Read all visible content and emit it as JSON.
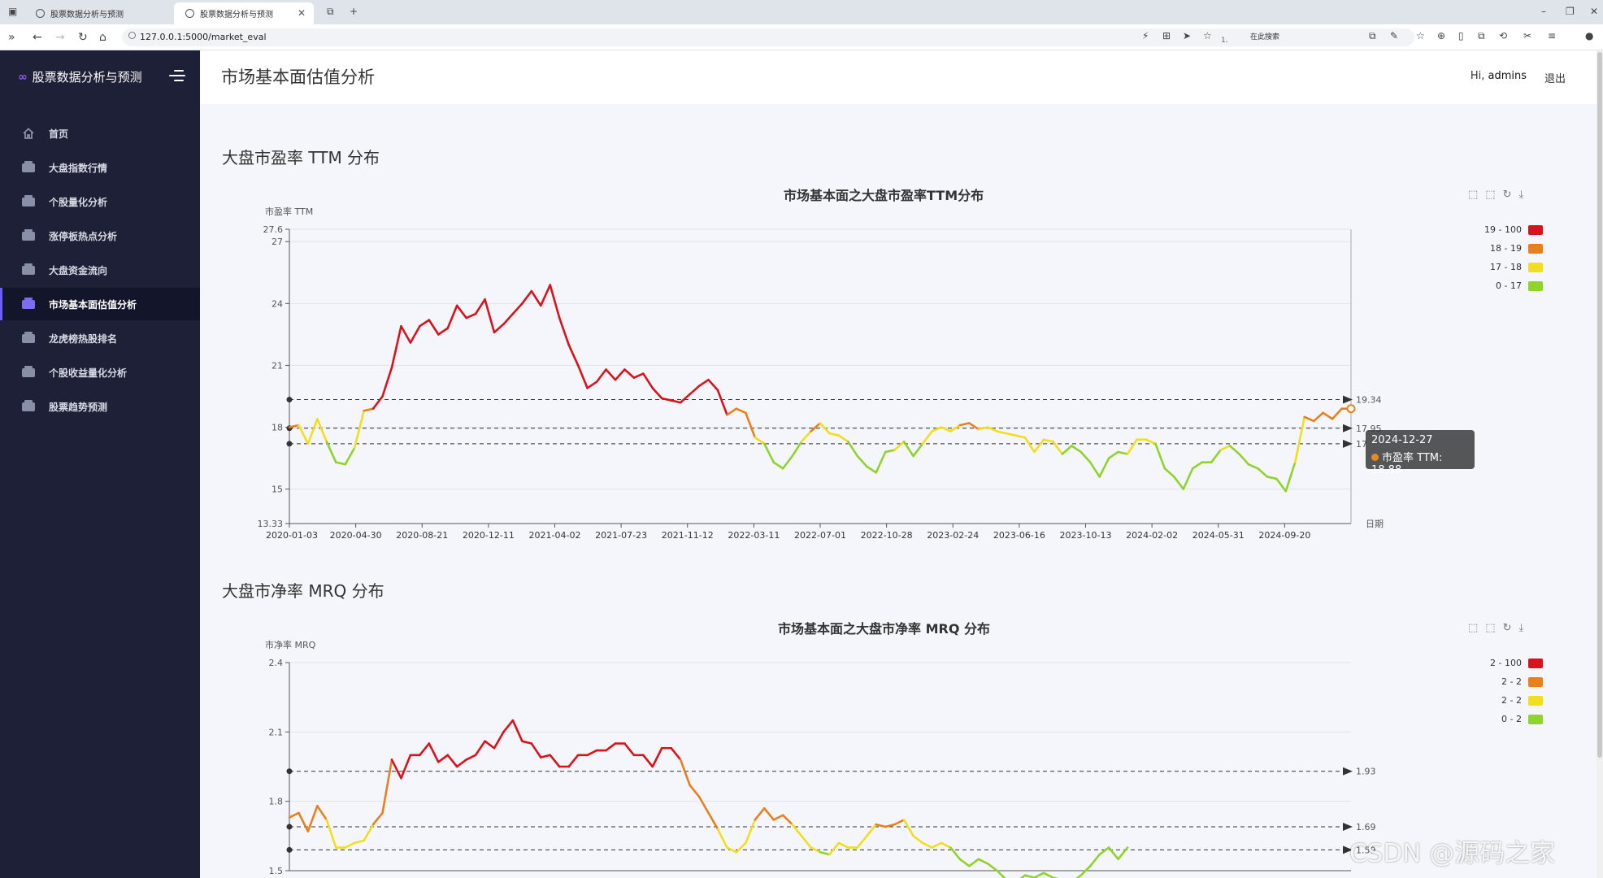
{
  "browser": {
    "tabs": [
      {
        "label": "股票数据分析与预测",
        "active": false
      },
      {
        "label": "股票数据分析与预测",
        "active": true
      }
    ],
    "url": "127.0.0.1:5000/market_eval",
    "zoom": "120%",
    "search_placeholder": "在此搜索"
  },
  "sidebar": {
    "brand": "股票数据分析与预测",
    "items": [
      {
        "label": "首页",
        "icon": "home-icon",
        "active": false
      },
      {
        "label": "大盘指数行情",
        "icon": "stack-icon",
        "active": false
      },
      {
        "label": "个股量化分析",
        "icon": "stack-icon",
        "active": false
      },
      {
        "label": "涨停板热点分析",
        "icon": "stack-icon",
        "active": false
      },
      {
        "label": "大盘资金流向",
        "icon": "stack-icon",
        "active": false
      },
      {
        "label": "市场基本面估值分析",
        "icon": "stack-icon",
        "active": true
      },
      {
        "label": "龙虎榜热股排名",
        "icon": "stack-icon",
        "active": false
      },
      {
        "label": "个股收益量化分析",
        "icon": "stack-icon",
        "active": false
      },
      {
        "label": "股票趋势预测",
        "icon": "stack-icon",
        "active": false
      }
    ]
  },
  "header": {
    "title": "市场基本面估值分析",
    "greeting": "Hi,",
    "username": "admins",
    "logout": "退出"
  },
  "sections": {
    "pe": "大盘市盈率 TTM 分布",
    "pb": "大盘市净率 MRQ 分布"
  },
  "tooltip": {
    "date": "2024-12-27",
    "label": "市盈率 TTM: 18.88"
  },
  "watermark": "CSDN @源码之家",
  "colors": {
    "red": "#d7141b",
    "orange": "#e8801e",
    "yellow": "#f2de1c",
    "green": "#8fd42b",
    "sidebar_bg": "#1d2037"
  },
  "chart_data": [
    {
      "type": "line",
      "title": "市场基本面之大盘市盈率TTM分布",
      "ylabel": "市盈率 TTM",
      "xlabel": "日期",
      "ylim": [
        13.33,
        27.6
      ],
      "yticks": [
        "13.33",
        "15",
        "18",
        "21",
        "24",
        "27",
        "27.6"
      ],
      "xticks": [
        "2020-01-03",
        "2020-04-30",
        "2020-08-21",
        "2020-12-11",
        "2021-04-02",
        "2021-07-23",
        "2021-11-12",
        "2022-03-11",
        "2022-07-01",
        "2022-10-28",
        "2023-02-24",
        "2023-06-16",
        "2023-10-13",
        "2024-02-02",
        "2024-05-31",
        "2024-09-20"
      ],
      "legend": [
        {
          "label": "19 - 100",
          "color": "#d7141b"
        },
        {
          "label": "18 - 19",
          "color": "#e8801e"
        },
        {
          "label": "17 - 18",
          "color": "#f2de1c"
        },
        {
          "label": "0 - 17",
          "color": "#8fd42b"
        }
      ],
      "thresholds": [
        19,
        18,
        17
      ],
      "marklines": [
        {
          "value": 19.34,
          "label": "19.34"
        },
        {
          "value": 17.95,
          "label": "17.95"
        },
        {
          "value": 17.2,
          "label": "17"
        }
      ],
      "series": [
        {
          "name": "市盈率 TTM",
          "values": [
            18.0,
            18.1,
            17.2,
            18.4,
            17.3,
            16.3,
            16.2,
            17.0,
            18.8,
            18.9,
            19.5,
            20.9,
            22.9,
            22.1,
            22.9,
            23.2,
            22.5,
            22.8,
            23.9,
            23.3,
            23.5,
            24.2,
            22.6,
            23.0,
            23.5,
            24.0,
            24.6,
            23.9,
            24.9,
            23.3,
            22.0,
            21.0,
            19.9,
            20.2,
            20.8,
            20.3,
            20.8,
            20.4,
            20.6,
            19.9,
            19.4,
            19.3,
            19.2,
            19.6,
            20.0,
            20.3,
            19.8,
            18.6,
            18.9,
            18.7,
            17.5,
            17.2,
            16.3,
            16.0,
            16.6,
            17.3,
            17.8,
            18.2,
            17.7,
            17.6,
            17.3,
            16.6,
            16.1,
            15.8,
            16.8,
            16.9,
            17.3,
            16.6,
            17.2,
            17.8,
            18.0,
            17.8,
            18.1,
            18.2,
            17.9,
            18.0,
            17.8,
            17.7,
            17.6,
            17.5,
            16.8,
            17.4,
            17.3,
            16.7,
            17.1,
            16.8,
            16.3,
            15.6,
            16.5,
            16.8,
            16.7,
            17.4,
            17.4,
            17.2,
            16.0,
            15.6,
            15.0,
            16.0,
            16.3,
            16.3,
            16.9,
            17.1,
            16.7,
            16.2,
            16.0,
            15.6,
            15.5,
            14.9,
            16.3,
            18.5,
            18.3,
            18.7,
            18.4,
            18.9,
            18.9
          ]
        }
      ]
    },
    {
      "type": "line",
      "title": "市场基本面之大盘市净率 MRQ 分布",
      "ylabel": "市净率 MRQ",
      "ylim": [
        1.5,
        2.4
      ],
      "yticks": [
        "1.5",
        "1.8",
        "2.1",
        "2.4"
      ],
      "legend": [
        {
          "label": "2 - 100",
          "color": "#d7141b"
        },
        {
          "label": "2 - 2",
          "color": "#e8801e"
        },
        {
          "label": "2 - 2",
          "color": "#f2de1c"
        },
        {
          "label": "0 - 2",
          "color": "#8fd42b"
        }
      ],
      "thresholds": [
        1.93,
        1.69,
        1.59
      ],
      "marklines": [
        {
          "value": 1.93,
          "label": "1.93"
        },
        {
          "value": 1.69,
          "label": "1.69"
        },
        {
          "value": 1.59,
          "label": "1.59"
        }
      ],
      "series": [
        {
          "name": "市净率 MRQ",
          "values": [
            1.73,
            1.75,
            1.67,
            1.78,
            1.72,
            1.6,
            1.6,
            1.62,
            1.63,
            1.7,
            1.75,
            1.98,
            1.9,
            2.0,
            2.0,
            2.05,
            1.97,
            2.0,
            1.95,
            1.98,
            2.0,
            2.06,
            2.03,
            2.1,
            2.15,
            2.06,
            2.05,
            1.99,
            2.0,
            1.95,
            1.95,
            2.0,
            2.0,
            2.02,
            2.02,
            2.05,
            2.05,
            2.0,
            2.0,
            1.95,
            2.03,
            2.03,
            1.98,
            1.87,
            1.82,
            1.75,
            1.68,
            1.6,
            1.58,
            1.62,
            1.72,
            1.77,
            1.72,
            1.74,
            1.7,
            1.65,
            1.6,
            1.58,
            1.57,
            1.62,
            1.6,
            1.6,
            1.65,
            1.7,
            1.69,
            1.7,
            1.72,
            1.65,
            1.62,
            1.6,
            1.62,
            1.6,
            1.55,
            1.52,
            1.55,
            1.53,
            1.5,
            1.46,
            1.45,
            1.48,
            1.47,
            1.49,
            1.47,
            1.46,
            1.45,
            1.48,
            1.52,
            1.57,
            1.6,
            1.55,
            1.6
          ]
        }
      ]
    }
  ]
}
